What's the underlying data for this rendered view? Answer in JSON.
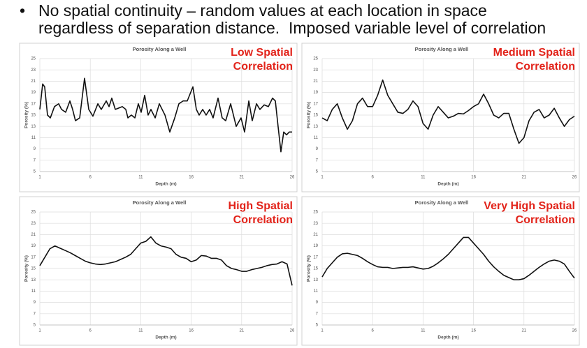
{
  "bullet": [
    "No spatial continuity – random values at each location in space",
    "regardless of separation distance.  Imposed variable level of correlation"
  ],
  "chart_data": [
    {
      "type": "line",
      "title": "Porosity Along a Well",
      "annotation": [
        "Low Spatial",
        "Correlation"
      ],
      "xlabel": "Depth (m)",
      "ylabel": "Porosity (%)",
      "color": "#111111",
      "x": [
        1.0,
        1.28,
        1.48,
        1.76,
        2.04,
        2.45,
        2.87,
        3.15,
        3.56,
        3.98,
        4.25,
        4.53,
        4.95,
        5.43,
        5.85,
        6.26,
        6.75,
        7.09,
        7.58,
        7.86,
        8.13,
        8.48,
        9.17,
        9.52,
        9.73,
        10.07,
        10.42,
        10.76,
        11.04,
        11.39,
        11.73,
        12.01,
        12.43,
        12.84,
        13.4,
        13.88,
        14.37,
        14.78,
        15.2,
        15.61,
        16.17,
        16.51,
        16.79,
        17.14,
        17.48,
        17.83,
        18.17,
        18.66,
        19.07,
        19.42,
        19.91,
        20.46,
        20.94,
        21.29,
        21.71,
        22.05,
        22.47,
        22.81,
        23.23,
        23.65,
        24.06,
        24.34,
        24.61,
        24.89,
        25.17,
        25.45,
        25.72,
        26.0
      ],
      "values": [
        16,
        20.5,
        20,
        15,
        14.5,
        16.5,
        17,
        16,
        15.5,
        17.5,
        16,
        14,
        14.5,
        21.5,
        16,
        14.8,
        17,
        16,
        17.5,
        16.5,
        18,
        16,
        16.5,
        16,
        14.5,
        15,
        14.5,
        17,
        15.5,
        18.5,
        15,
        16,
        14.5,
        17,
        15,
        12,
        14.5,
        17,
        17.5,
        17.5,
        20,
        16,
        15,
        16,
        15,
        16,
        14.5,
        18,
        14.5,
        14,
        17,
        13,
        14.5,
        12,
        17.5,
        14,
        17,
        16,
        16.8,
        16.5,
        18,
        17.5,
        13,
        8.5,
        12,
        11.5,
        12,
        12
      ],
      "xlim": [
        1,
        26
      ],
      "xticks": [
        1,
        6,
        11,
        16,
        21,
        26
      ],
      "ylim": [
        5,
        25
      ],
      "yticks": [
        5,
        7,
        9,
        11,
        13,
        15,
        17,
        19,
        21,
        23,
        25
      ],
      "grid": true
    },
    {
      "type": "line",
      "title": "Porosity Along a Well",
      "annotation": [
        "Medium Spatial",
        "Correlation"
      ],
      "xlabel": "Depth (m)",
      "ylabel": "Porosity (%)",
      "color": "#111111",
      "x": [
        1,
        1.5,
        2,
        2.5,
        3,
        3.5,
        4,
        4.5,
        5,
        5.5,
        6,
        6.5,
        7,
        7.5,
        8,
        8.5,
        9,
        9.5,
        10,
        10.5,
        11,
        11.5,
        12,
        12.5,
        13,
        13.5,
        14,
        14.5,
        15,
        15.5,
        16,
        16.5,
        17,
        17.5,
        18,
        18.5,
        19,
        19.5,
        20,
        20.5,
        21,
        21.5,
        22,
        22.5,
        23,
        23.5,
        24,
        24.5,
        25,
        25.5,
        26
      ],
      "values": [
        14.5,
        14,
        16,
        17,
        14.5,
        12.5,
        14,
        17,
        18,
        16.5,
        16.5,
        18.5,
        21.2,
        18.5,
        17,
        15.5,
        15.3,
        16,
        17.5,
        16.5,
        13.5,
        12.5,
        15,
        16.5,
        15.5,
        14.5,
        14.8,
        15.3,
        15.2,
        15.8,
        16.5,
        17,
        18.7,
        17,
        15,
        14.5,
        15.3,
        15.3,
        12.5,
        10,
        11,
        14,
        15.5,
        16,
        14.5,
        15,
        16.2,
        14.5,
        13,
        14.2,
        14.8
      ],
      "xlim": [
        1,
        26
      ],
      "xticks": [
        1,
        6,
        11,
        16,
        21,
        26
      ],
      "ylim": [
        5,
        25
      ],
      "yticks": [
        5,
        7,
        9,
        11,
        13,
        15,
        17,
        19,
        21,
        23,
        25
      ],
      "grid": true
    },
    {
      "type": "line",
      "title": "Porosity Along a Well",
      "annotation": [
        "High Spatial",
        "Correlation"
      ],
      "xlabel": "Depth (m)",
      "ylabel": "Porosity (%)",
      "color": "#111111",
      "x": [
        1,
        1.5,
        2,
        2.5,
        3,
        3.5,
        4,
        4.5,
        5,
        5.5,
        6,
        6.5,
        7,
        7.5,
        8,
        8.5,
        9,
        9.5,
        10,
        10.5,
        11,
        11.5,
        12,
        12.5,
        13,
        13.5,
        14,
        14.5,
        15,
        15.5,
        16,
        16.5,
        17,
        17.5,
        18,
        18.5,
        19,
        19.5,
        20,
        20.5,
        21,
        21.5,
        22,
        22.5,
        23,
        23.5,
        24,
        24.5,
        25,
        25.5,
        26
      ],
      "values": [
        15.5,
        17,
        18.5,
        19,
        18.6,
        18.2,
        17.8,
        17.3,
        16.8,
        16.3,
        16,
        15.8,
        15.7,
        15.8,
        16,
        16.2,
        16.6,
        17,
        17.5,
        18.5,
        19.5,
        19.8,
        20.6,
        19.5,
        19,
        18.8,
        18.5,
        17.5,
        17,
        16.8,
        16.2,
        16.5,
        17.3,
        17.2,
        16.8,
        16.8,
        16.5,
        15.5,
        15,
        14.8,
        14.5,
        14.5,
        14.8,
        15,
        15.2,
        15.5,
        15.7,
        15.8,
        16.2,
        15.8,
        12
      ],
      "xlim": [
        1,
        26
      ],
      "xticks": [
        1,
        6,
        11,
        16,
        21,
        26
      ],
      "ylim": [
        5,
        25
      ],
      "yticks": [
        5,
        7,
        9,
        11,
        13,
        15,
        17,
        19,
        21,
        23,
        25
      ],
      "grid": true
    },
    {
      "type": "line",
      "title": "Porosity Along a Well",
      "annotation": [
        "Very High Spatial",
        "Correlation"
      ],
      "xlabel": "Depth (m)",
      "ylabel": "Porosity (%)",
      "color": "#111111",
      "x": [
        1,
        1.5,
        2,
        2.5,
        3,
        3.5,
        4,
        4.5,
        5,
        5.5,
        6,
        6.5,
        7,
        7.5,
        8,
        8.5,
        9,
        9.5,
        10,
        10.5,
        11,
        11.5,
        12,
        12.5,
        13,
        13.5,
        14,
        14.5,
        15,
        15.5,
        16,
        16.5,
        17,
        17.5,
        18,
        18.5,
        19,
        19.5,
        20,
        20.5,
        21,
        21.5,
        22,
        22.5,
        23,
        23.5,
        24,
        24.5,
        25,
        25.5,
        26
      ],
      "values": [
        13.5,
        15,
        16,
        17,
        17.6,
        17.7,
        17.5,
        17.3,
        16.8,
        16.2,
        15.7,
        15.3,
        15.2,
        15.2,
        15,
        15.1,
        15.2,
        15.2,
        15.3,
        15.1,
        14.9,
        15,
        15.4,
        16,
        16.7,
        17.5,
        18.5,
        19.5,
        20.5,
        20.5,
        19.5,
        18.5,
        17.5,
        16.3,
        15.3,
        14.5,
        13.8,
        13.4,
        13,
        13,
        13.2,
        13.8,
        14.5,
        15.2,
        15.8,
        16.3,
        16.5,
        16.3,
        15.8,
        14.5,
        13.3
      ],
      "xlim": [
        1,
        26
      ],
      "xticks": [
        1,
        6,
        11,
        16,
        21,
        26
      ],
      "ylim": [
        5,
        25
      ],
      "yticks": [
        5,
        7,
        9,
        11,
        13,
        15,
        17,
        19,
        21,
        23,
        25
      ],
      "grid": true
    }
  ]
}
